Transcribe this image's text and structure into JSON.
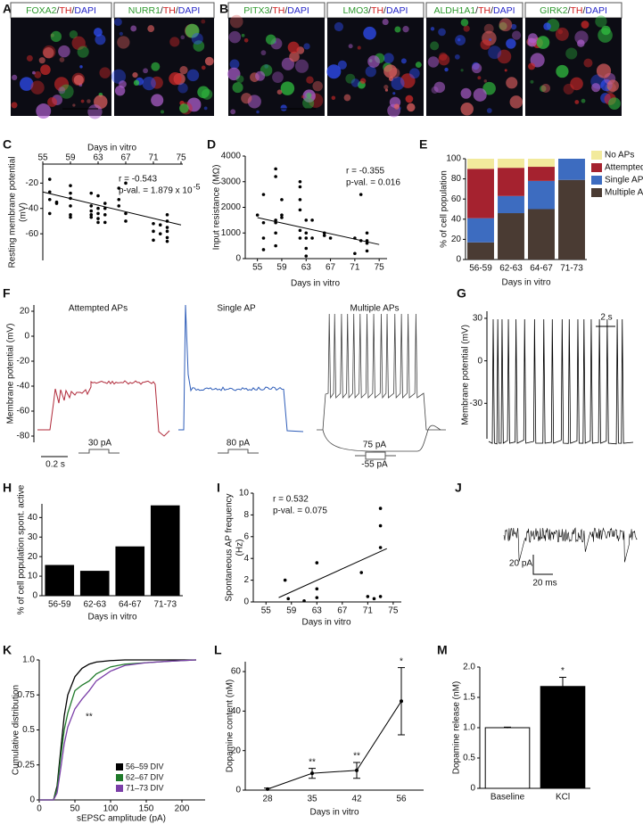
{
  "images": [
    {
      "panel": "A",
      "labels": [
        [
          "FOXA2",
          "/",
          "TH",
          "/",
          "DAPI"
        ],
        [
          "NURR1",
          "/",
          "TH",
          "/",
          "DAPI"
        ]
      ]
    },
    {
      "panel": "B",
      "labels": [
        [
          "PITX3",
          "/",
          "TH",
          "/",
          "DAPI"
        ],
        [
          "LMO3",
          "/",
          "TH",
          "/",
          "DAPI"
        ],
        [
          "ALDH1A1",
          "/",
          "TH",
          "/",
          "DAPI"
        ],
        [
          "GIRK2",
          "/",
          "TH",
          "/",
          "DAPI"
        ]
      ]
    }
  ],
  "label_colors": [
    "#2e9a2e",
    "#222222",
    "#d01c1c",
    "#222222",
    "#2424c8"
  ],
  "chart_data": [
    {
      "panel": "C",
      "type": "scatter",
      "x_label": "Days in vitro",
      "y_label": [
        "Resting membrane potential",
        "(mV)"
      ],
      "xlim": [
        55,
        75
      ],
      "xticks": [
        55,
        59,
        63,
        67,
        71,
        75
      ],
      "ylim": [
        -81,
        -5
      ],
      "yticks": [
        -20,
        -40,
        -60
      ],
      "x_axis": "top",
      "x": [
        56,
        56,
        56,
        56,
        57,
        57,
        59,
        59,
        59,
        59,
        59,
        59,
        62,
        62,
        62,
        62,
        62,
        63,
        63,
        63,
        63,
        63,
        64,
        64,
        64,
        64,
        66,
        66,
        66,
        67,
        67,
        67,
        71,
        71,
        71,
        72,
        72,
        73,
        73,
        73,
        73,
        73,
        73
      ],
      "values": [
        -17,
        -27,
        -33,
        -44,
        -35,
        -36,
        -22,
        -28,
        -32,
        -38,
        -45,
        -47,
        -28,
        -38,
        -42,
        -45,
        -47,
        -30,
        -40,
        -44,
        -48,
        -51,
        -36,
        -40,
        -45,
        -51,
        -24,
        -33,
        -38,
        -20,
        -44,
        -50,
        -52,
        -58,
        -65,
        -53,
        -60,
        -45,
        -50,
        -55,
        -58,
        -63,
        -66
      ],
      "fit_x": [
        55,
        75
      ],
      "fit_values": [
        -27,
        -53
      ],
      "annotations": [
        "r = -0.543",
        "p-val. = 1.879 x 10"
      ],
      "annotation_sup": "-5"
    },
    {
      "panel": "D",
      "type": "scatter",
      "x_label": "Days in vitro",
      "y_label": "Input resistance (MΩ)",
      "xlim": [
        53,
        76
      ],
      "xticks": [
        55,
        59,
        63,
        67,
        71,
        75
      ],
      "ylim": [
        0,
        4000
      ],
      "yticks": [
        0,
        1000,
        2000,
        3000,
        4000
      ],
      "x_axis": "bottom",
      "x": [
        55,
        56,
        56,
        56,
        56,
        58,
        58,
        58,
        58,
        58,
        58,
        59,
        59,
        59,
        62,
        62,
        62,
        62,
        62,
        62,
        63,
        63,
        63,
        63,
        63,
        64,
        64,
        66,
        66,
        67,
        71,
        71,
        72,
        72,
        73,
        73,
        73,
        73
      ],
      "values": [
        1700,
        2500,
        1400,
        800,
        350,
        3500,
        3200,
        1500,
        1400,
        1000,
        500,
        2300,
        1700,
        1600,
        3000,
        2800,
        2300,
        1900,
        1100,
        800,
        1500,
        1000,
        800,
        400,
        100,
        1500,
        800,
        1000,
        900,
        800,
        800,
        200,
        2500,
        700,
        1000,
        700,
        600,
        300
      ],
      "fit_x": [
        55,
        75
      ],
      "fit_values": [
        1600,
        550
      ],
      "annotations": [
        "r = -0.355",
        "p-val. = 0.016"
      ]
    },
    {
      "panel": "E",
      "type": "stacked_bar",
      "x_label": "Days in vitro",
      "y_label": "% of cell population",
      "categories": [
        "56-59",
        "62-63",
        "64-67",
        "71-73"
      ],
      "ylim": [
        0,
        100
      ],
      "yticks": [
        0,
        20,
        40,
        60,
        80,
        100
      ],
      "series": [
        {
          "name": "Multiple APs",
          "color": "#4a3b33",
          "values": [
            17,
            46,
            50,
            79
          ]
        },
        {
          "name": "Single AP",
          "color": "#3d6cc0",
          "values": [
            24,
            17,
            28,
            21
          ]
        },
        {
          "name": "Attempted APs",
          "color": "#a5222f",
          "values": [
            49,
            28,
            14,
            0
          ]
        },
        {
          "name": "No APs",
          "color": "#f2ea9c",
          "values": [
            10,
            9,
            8,
            0
          ]
        }
      ]
    },
    {
      "panel": "F",
      "type": "trace",
      "y_label": "Membrane potential (mV)",
      "ylim": [
        -85,
        25
      ],
      "yticks": [
        20,
        0,
        -20,
        -40,
        -60,
        -80
      ],
      "titles": [
        "Attempted APs",
        "Single AP",
        "Multiple APs"
      ],
      "stimuli": [
        "30 pA",
        "80 pA",
        "75 pA",
        "-55 pA"
      ],
      "scale_label": "0.2 s"
    },
    {
      "panel": "G",
      "type": "trace",
      "y_label": "Membrane potential (mV)",
      "ylim": [
        -55,
        35
      ],
      "yticks": [
        30,
        0,
        -30
      ],
      "scale_label": "2 s"
    },
    {
      "panel": "H",
      "type": "bar",
      "x_label": "Days in vitro",
      "y_label": "% of cell population spont. active",
      "categories": [
        "56-59",
        "62-63",
        "64-67",
        "71-73"
      ],
      "values": [
        15.5,
        12.5,
        25,
        46
      ],
      "color": "#000000",
      "ylim": [
        0,
        47
      ],
      "yticks": [
        0,
        10,
        20,
        30,
        40
      ]
    },
    {
      "panel": "I",
      "type": "scatter",
      "x_label": "Days in vitro",
      "y_label": [
        "Spontaneous AP frequency",
        "(Hz)"
      ],
      "xlim": [
        53,
        76
      ],
      "xticks": [
        55,
        59,
        63,
        67,
        71,
        75
      ],
      "ylim": [
        0,
        10
      ],
      "yticks": [
        0,
        2,
        4,
        6,
        8,
        10
      ],
      "x_axis": "bottom",
      "x": [
        58,
        58.5,
        61,
        63,
        63,
        63,
        70,
        71,
        72,
        73,
        73,
        73,
        73
      ],
      "values": [
        2,
        0.3,
        0.1,
        3.6,
        1.2,
        0.4,
        2.7,
        0.5,
        0.3,
        8.6,
        7,
        5,
        0.5
      ],
      "fit_x": [
        57,
        74
      ],
      "fit_values": [
        0.4,
        4.9
      ],
      "annotations": [
        "r = 0.532",
        "p-val. = 0.075"
      ]
    },
    {
      "panel": "J",
      "type": "trace",
      "scale_labels": [
        "20 pA",
        "20 ms"
      ]
    },
    {
      "panel": "K",
      "type": "line",
      "x_label": "sEPSC amplitude (pA)",
      "y_label": "Cumulative distribution",
      "xlim": [
        0,
        230
      ],
      "xticks": [
        0,
        50,
        100,
        150,
        200
      ],
      "ylim": [
        0,
        1
      ],
      "yticks": [
        0,
        0.25,
        0.5,
        0.75,
        {
          "value": 1,
          "label": "1.0"
        }
      ],
      "series": [
        {
          "name": "56–59 DIV",
          "color": "#000000",
          "x": [
            0,
            20,
            25,
            30,
            35,
            40,
            50,
            60,
            70,
            80,
            100,
            120,
            150,
            180,
            220
          ],
          "values": [
            0,
            0,
            0.1,
            0.35,
            0.6,
            0.75,
            0.88,
            0.94,
            0.97,
            0.985,
            0.995,
            1,
            1,
            1,
            1
          ]
        },
        {
          "name": "62–67 DIV",
          "color": "#1f7a2a",
          "x": [
            0,
            20,
            25,
            30,
            35,
            40,
            50,
            60,
            70,
            80,
            100,
            120,
            150,
            180,
            220
          ],
          "values": [
            0,
            0,
            0.08,
            0.3,
            0.5,
            0.62,
            0.78,
            0.82,
            0.85,
            0.9,
            0.95,
            0.97,
            0.98,
            0.99,
            1
          ]
        },
        {
          "name": "71–73 DIV",
          "color": "#7b3fa8",
          "x": [
            0,
            20,
            25,
            30,
            35,
            40,
            50,
            60,
            70,
            80,
            100,
            120,
            150,
            180,
            220
          ],
          "values": [
            0,
            0,
            0.05,
            0.22,
            0.4,
            0.52,
            0.65,
            0.72,
            0.78,
            0.85,
            0.92,
            0.96,
            0.98,
            0.99,
            1
          ]
        }
      ],
      "annotations": [
        "**"
      ]
    },
    {
      "panel": "L",
      "type": "error_line",
      "x_label": "Days in vitro",
      "y_label": "Dopamine content (nM)",
      "categories": [
        "28",
        "35",
        "42",
        "56"
      ],
      "values": [
        0.5,
        8.5,
        10,
        45
      ],
      "errors": [
        0.5,
        2.5,
        4,
        17
      ],
      "significance": [
        null,
        "**",
        "**",
        "*"
      ],
      "ylim": [
        0,
        65
      ],
      "yticks": [
        0,
        20,
        40,
        60
      ]
    },
    {
      "panel": "M",
      "type": "bar",
      "y_label": "Dopamine release (nM)",
      "categories": [
        "Baseline",
        "KCl"
      ],
      "values": [
        1.0,
        1.68
      ],
      "errors": [
        0.01,
        0.15
      ],
      "colors": [
        "#ffffff",
        "#000000"
      ],
      "significance": [
        null,
        "*"
      ],
      "ylim": [
        0,
        2
      ],
      "yticks": [
        0,
        0.5,
        {
          "value": 1,
          "label": "1.0"
        },
        1.5,
        {
          "value": 2,
          "label": "2.0"
        }
      ]
    }
  ]
}
